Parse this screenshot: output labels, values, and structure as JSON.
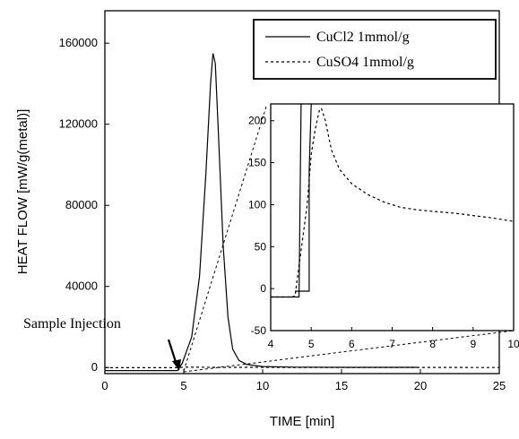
{
  "chart_data": [
    {
      "type": "line",
      "xlabel": "TIME [min]",
      "ylabel": "HEAT FLOW [mW/g(metal)]",
      "xlim": [
        0,
        25
      ],
      "ylim": [
        -3000,
        176000
      ],
      "x_ticks": [
        "0",
        "5",
        "10",
        "15",
        "20",
        "25"
      ],
      "y_ticks": [
        "0",
        "40000",
        "80000",
        "120000",
        "160000"
      ],
      "x_tick_values": [
        0,
        5,
        10,
        15,
        20,
        25
      ],
      "y_tick_values": [
        0,
        40000,
        80000,
        120000,
        160000
      ],
      "legend_position": "top-right",
      "series": [
        {
          "name": "CuCl2 1mmol/g",
          "style": "solid",
          "x": [
            0,
            4.6,
            4.9,
            5.5,
            6.0,
            6.4,
            6.7,
            6.85,
            7.0,
            7.2,
            7.5,
            7.8,
            8.1,
            8.5,
            9.0,
            10.0,
            12.0,
            15.0,
            19.8
          ],
          "y": [
            -1500,
            -1500,
            2000,
            15000,
            45000,
            95000,
            140000,
            155000,
            150000,
            115000,
            60000,
            25000,
            9000,
            3500,
            1500,
            500,
            200,
            100,
            100
          ]
        },
        {
          "name": "CuSO4 1mmol/g",
          "style": "dashed",
          "x": [
            0,
            4.5,
            5.0,
            5.2,
            5.6,
            6.0,
            7.0,
            8.0,
            9.0,
            10.0,
            12.0,
            15.0,
            17.0,
            20.0,
            25.0
          ],
          "y": [
            -100,
            -100,
            150,
            215,
            140,
            120,
            95,
            90,
            85,
            80,
            70,
            55,
            45,
            35,
            25
          ]
        }
      ],
      "annotation": {
        "text": "Sample Injection",
        "arrow_to": [
          4.8,
          0
        ]
      }
    },
    {
      "type": "line",
      "role": "inset",
      "xlim": [
        4,
        10
      ],
      "ylim": [
        -50,
        220
      ],
      "x_ticks": [
        "4",
        "5",
        "6",
        "7",
        "8",
        "9",
        "10"
      ],
      "y_ticks": [
        "-50",
        "0",
        "50",
        "100",
        "150",
        "200"
      ],
      "x_tick_values": [
        4,
        5,
        6,
        7,
        8,
        9,
        10
      ],
      "y_tick_values": [
        -50,
        0,
        50,
        100,
        150,
        200
      ],
      "series": [
        {
          "name": "CuCl2 1mmol/g",
          "style": "solid",
          "x": [
            4.0,
            4.6,
            4.7,
            4.75,
            4.78
          ],
          "y": [
            -10,
            -10,
            -10,
            220,
            220
          ],
          "x2": [
            4.6,
            4.95,
            4.95,
            5.0,
            5.0
          ],
          "y2": [
            -3,
            -3,
            140,
            220,
            220
          ]
        },
        {
          "name": "CuSO4 1mmol/g",
          "style": "dashed",
          "x": [
            4.0,
            4.5,
            4.6,
            4.9,
            5.0,
            5.1,
            5.2,
            5.25,
            5.35,
            5.5,
            5.7,
            6.0,
            6.4,
            6.8,
            7.2,
            7.6,
            8.0,
            8.5,
            9.0,
            9.5,
            10.0
          ],
          "y": [
            -10,
            -10,
            -9,
            100,
            160,
            190,
            212,
            215,
            200,
            165,
            142,
            125,
            112,
            103,
            97,
            94,
            92,
            90,
            87,
            84,
            80
          ]
        }
      ]
    }
  ]
}
